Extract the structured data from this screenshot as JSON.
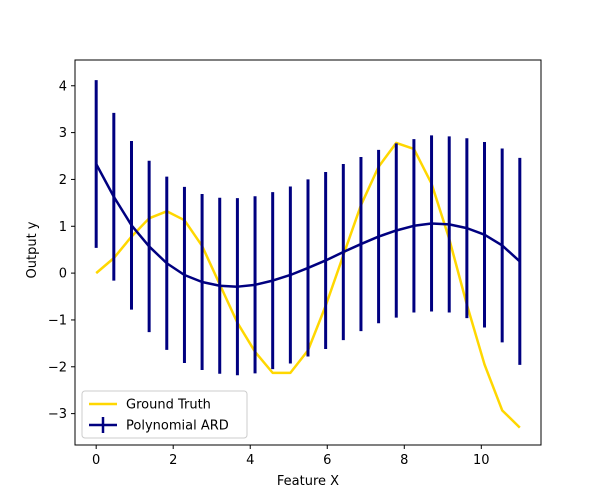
{
  "chart_data": {
    "type": "line",
    "xlabel": "Feature X",
    "ylabel": "Output y",
    "xlim": [
      -0.55,
      11.55
    ],
    "ylim": [
      -3.67,
      4.55
    ],
    "xticks": [
      0,
      2,
      4,
      6,
      8,
      10
    ],
    "yticks": [
      -3,
      -2,
      -1,
      0,
      1,
      2,
      3,
      4
    ],
    "legend_position": "lower-left",
    "grid": false,
    "series": [
      {
        "name": "Ground Truth",
        "kind": "line",
        "color": "#ffd700",
        "x": [
          0,
          0.458,
          0.917,
          1.375,
          1.833,
          2.292,
          2.75,
          3.208,
          3.667,
          4.125,
          4.583,
          5.042,
          5.5,
          5.958,
          6.417,
          6.875,
          7.333,
          7.792,
          8.25,
          8.708,
          9.167,
          9.625,
          10.083,
          10.542,
          11.0
        ],
        "y": [
          0.0,
          0.32,
          0.78,
          1.17,
          1.32,
          1.13,
          0.58,
          -0.24,
          -1.06,
          -1.68,
          -2.13,
          -2.13,
          -1.65,
          -0.7,
          0.38,
          1.45,
          2.27,
          2.78,
          2.65,
          1.91,
          0.73,
          -0.67,
          -1.95,
          -2.93,
          -3.3
        ]
      },
      {
        "name": "Polynomial ARD",
        "kind": "errorbar",
        "color": "#000080",
        "x": [
          0,
          0.458,
          0.917,
          1.375,
          1.833,
          2.292,
          2.75,
          3.208,
          3.667,
          4.125,
          4.583,
          5.042,
          5.5,
          5.958,
          6.417,
          6.875,
          7.333,
          7.792,
          8.25,
          8.708,
          9.167,
          9.625,
          10.083,
          10.542,
          11.0
        ],
        "y": [
          2.33,
          1.63,
          1.02,
          0.57,
          0.21,
          -0.04,
          -0.19,
          -0.27,
          -0.29,
          -0.25,
          -0.16,
          -0.04,
          0.11,
          0.27,
          0.45,
          0.62,
          0.78,
          0.91,
          1.01,
          1.06,
          1.04,
          0.96,
          0.82,
          0.59,
          0.25
        ],
        "err": [
          1.79,
          1.79,
          1.8,
          1.83,
          1.85,
          1.88,
          1.88,
          1.88,
          1.89,
          1.89,
          1.89,
          1.89,
          1.89,
          1.89,
          1.88,
          1.86,
          1.85,
          1.86,
          1.85,
          1.88,
          1.88,
          1.92,
          1.98,
          2.07,
          2.21
        ]
      }
    ]
  }
}
